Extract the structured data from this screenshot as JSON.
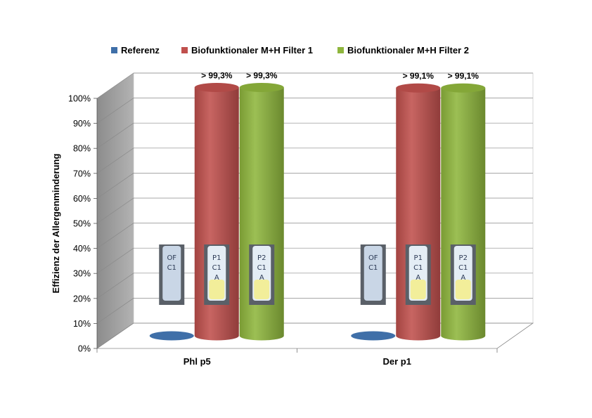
{
  "chart_data": {
    "type": "bar",
    "categories": [
      "Phl p5",
      "Der p1"
    ],
    "series": [
      {
        "name": "Referenz",
        "values": [
          0,
          0
        ],
        "color": "#3f6fa8"
      },
      {
        "name": "Biofunktionaler M+H Filter 1",
        "values": [
          99.3,
          99.1
        ],
        "color": "#c0504d"
      },
      {
        "name": "Biofunktionaler M+H Filter 2",
        "values": [
          99.3,
          99.1
        ],
        "color": "#8fb63d"
      }
    ],
    "data_labels": [
      [
        "",
        "> 99,3%",
        "> 99,3%"
      ],
      [
        "",
        "> 99,1%",
        "> 99,1%"
      ]
    ],
    "tube_labels": [
      [
        "OF C1",
        "P1 C1 A",
        "P2 C1 A"
      ],
      [
        "OF C1",
        "P1 C1 A",
        "P2 C1 A"
      ]
    ],
    "title": "",
    "xlabel": "",
    "ylabel": "Effizienz der Allergenminderung",
    "ylim": [
      0,
      100
    ],
    "yticks": [
      "0%",
      "10%",
      "20%",
      "30%",
      "40%",
      "50%",
      "60%",
      "70%",
      "80%",
      "90%",
      "100%"
    ],
    "grid": true,
    "legend_position": "top",
    "style": "3d-cylinder"
  }
}
